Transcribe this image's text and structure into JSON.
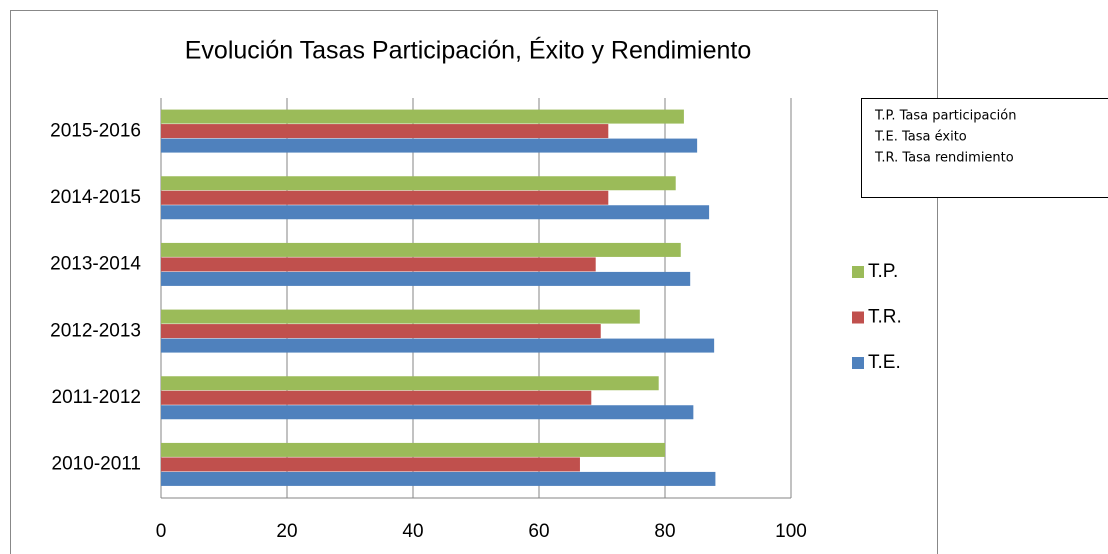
{
  "chart_data": {
    "type": "hbar",
    "title": "Evolución Tasas Participación, Éxito y Rendimiento",
    "categories": [
      "2010-2011",
      "2011-2012",
      "2012-2013",
      "2013-2014",
      "2014-2015",
      "2015-2016"
    ],
    "series": [
      {
        "name": "T.E.",
        "color": "#4f81bd",
        "values": [
          88,
          84.5,
          87.8,
          84,
          87,
          85.1
        ]
      },
      {
        "name": "T.R.",
        "color": "#c0504d",
        "values": [
          66.5,
          68.3,
          69.8,
          69,
          71,
          71
        ]
      },
      {
        "name": "T.P.",
        "color": "#9bbb59",
        "values": [
          80,
          79,
          76,
          82.5,
          81.7,
          83
        ]
      }
    ],
    "xlim": [
      0,
      100
    ],
    "xticks": [
      0,
      20,
      40,
      60,
      80,
      100
    ],
    "grid": true,
    "notes": [
      "T.P. Tasa participación",
      "T.E. Tasa éxito",
      "T.R. Tasa rendimiento"
    ]
  }
}
